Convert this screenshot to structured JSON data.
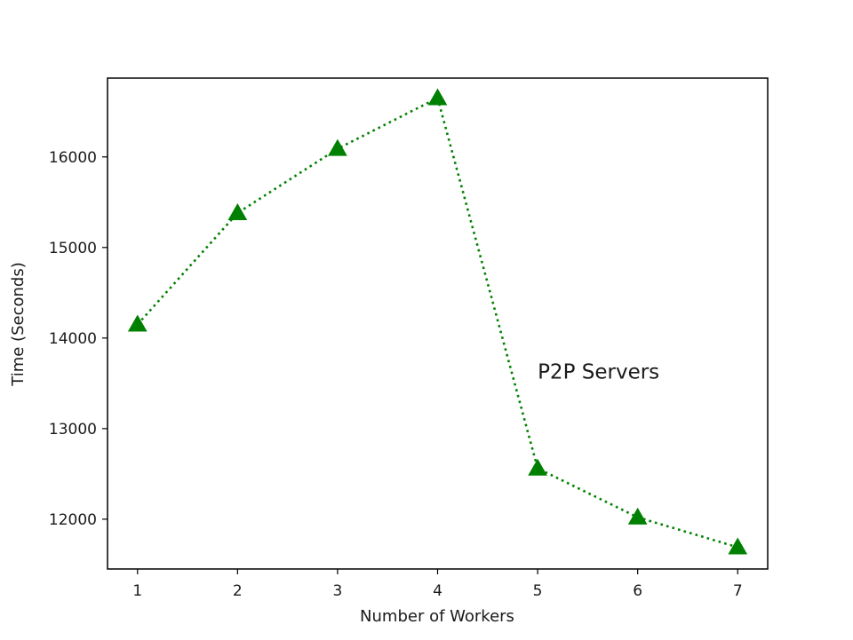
{
  "chart_data": {
    "type": "line",
    "title": "",
    "xlabel": "Number of Workers",
    "ylabel": "Time (Seconds)",
    "x": [
      1,
      2,
      3,
      4,
      5,
      6,
      7
    ],
    "xticks": [
      "1",
      "2",
      "3",
      "4",
      "5",
      "6",
      "7"
    ],
    "yticks": [
      12000,
      13000,
      14000,
      15000,
      16000
    ],
    "ytick_labels": [
      "12000",
      "13000",
      "14000",
      "15000",
      "16000"
    ],
    "xlim": [
      0.7,
      7.3
    ],
    "ylim": [
      11450,
      16870
    ],
    "grid": false,
    "series": [
      {
        "values": [
          14150,
          15380,
          16090,
          16650,
          12560,
          12020,
          11690
        ],
        "color": "#008000",
        "line_style": "dotted",
        "marker": "triangle-up"
      }
    ],
    "annotations": [
      {
        "text": "P2P Servers",
        "x": 5.0,
        "y": 13550
      }
    ]
  }
}
